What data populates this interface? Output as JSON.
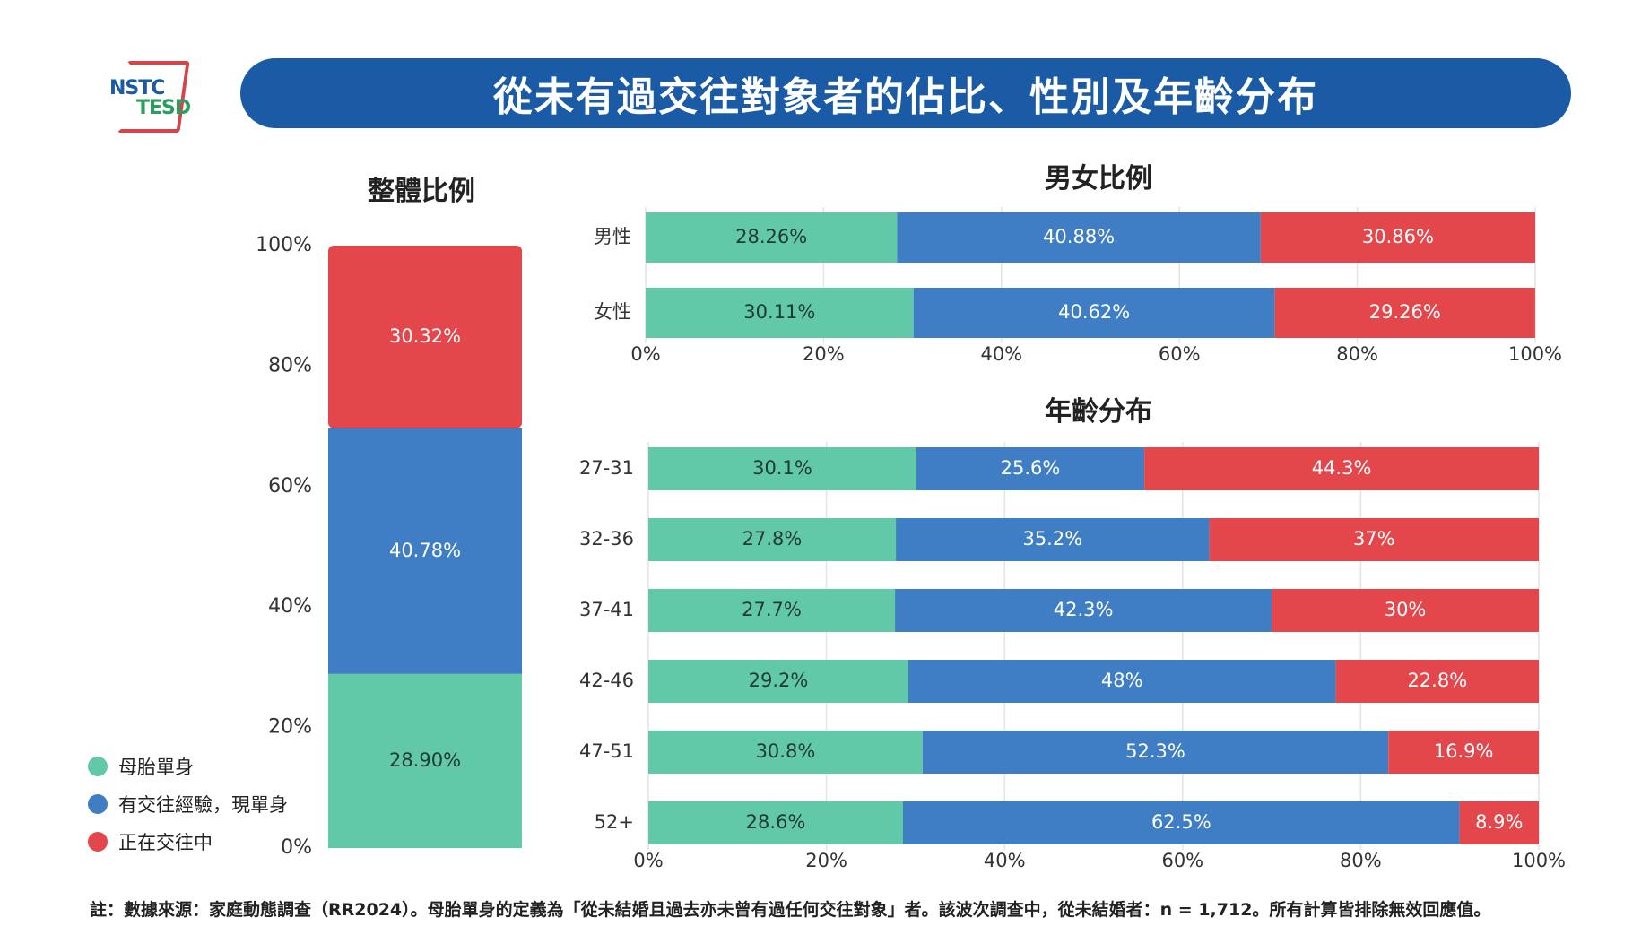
{
  "logo": {
    "line1": "NSTC",
    "line2": "TESD"
  },
  "header": {
    "title": "從未有過交往對象者的佔比、性別及年齡分布"
  },
  "colors": {
    "never": "#62c9a8",
    "had": "#3f7ec4",
    "current": "#e3474b"
  },
  "legend": [
    {
      "label": "母胎單身",
      "color": "#62c9a8"
    },
    {
      "label": "有交往經驗，現單身",
      "color": "#3f7ec4"
    },
    {
      "label": "正在交往中",
      "color": "#e3474b"
    }
  ],
  "footnote": "註：數據來源：家庭動態調查（RR2024）。母胎單身的定義為「從未結婚且過去亦未曾有過任何交往對象」者。該波次調查中，從未結婚者：n = 1,712。所有計算皆排除無效回應值。",
  "chart_data": [
    {
      "type": "bar",
      "title": "整體比例",
      "orientation": "vertical",
      "stacked": true,
      "categories": [
        "整體"
      ],
      "series": [
        {
          "name": "母胎單身",
          "values": [
            28.9
          ],
          "labels": [
            "28.90%"
          ]
        },
        {
          "name": "有交往經驗，現單身",
          "values": [
            40.78
          ],
          "labels": [
            "40.78%"
          ]
        },
        {
          "name": "正在交往中",
          "values": [
            30.32
          ],
          "labels": [
            "30.32%"
          ]
        }
      ],
      "ylim": [
        0,
        100
      ],
      "yticks": [
        "0%",
        "20%",
        "40%",
        "60%",
        "80%",
        "100%"
      ]
    },
    {
      "type": "bar",
      "title": "男女比例",
      "orientation": "horizontal",
      "stacked": true,
      "categories": [
        "男性",
        "女性"
      ],
      "series": [
        {
          "name": "母胎單身",
          "values": [
            28.26,
            30.11
          ],
          "labels": [
            "28.26%",
            "30.11%"
          ]
        },
        {
          "name": "有交往經驗，現單身",
          "values": [
            40.88,
            40.62
          ],
          "labels": [
            "40.88%",
            "40.62%"
          ]
        },
        {
          "name": "正在交往中",
          "values": [
            30.86,
            29.26
          ],
          "labels": [
            "30.86%",
            "29.26%"
          ]
        }
      ],
      "xlim": [
        0,
        100
      ],
      "xticks": [
        "0%",
        "20%",
        "40%",
        "60%",
        "80%",
        "100%"
      ]
    },
    {
      "type": "bar",
      "title": "年齡分布",
      "orientation": "horizontal",
      "stacked": true,
      "categories": [
        "27-31",
        "32-36",
        "37-41",
        "42-46",
        "47-51",
        "52+"
      ],
      "series": [
        {
          "name": "母胎單身",
          "values": [
            30.1,
            27.8,
            27.7,
            29.2,
            30.8,
            28.6
          ],
          "labels": [
            "30.1%",
            "27.8%",
            "27.7%",
            "29.2%",
            "30.8%",
            "28.6%"
          ]
        },
        {
          "name": "有交往經驗，現單身",
          "values": [
            25.6,
            35.2,
            42.3,
            48,
            52.3,
            62.5
          ],
          "labels": [
            "25.6%",
            "35.2%",
            "42.3%",
            "48%",
            "52.3%",
            "62.5%"
          ]
        },
        {
          "name": "正在交往中",
          "values": [
            44.3,
            37,
            30,
            22.8,
            16.9,
            8.9
          ],
          "labels": [
            "44.3%",
            "37%",
            "30%",
            "22.8%",
            "16.9%",
            "8.9%"
          ]
        }
      ],
      "xlim": [
        0,
        100
      ],
      "xticks": [
        "0%",
        "20%",
        "40%",
        "60%",
        "80%",
        "100%"
      ]
    }
  ]
}
